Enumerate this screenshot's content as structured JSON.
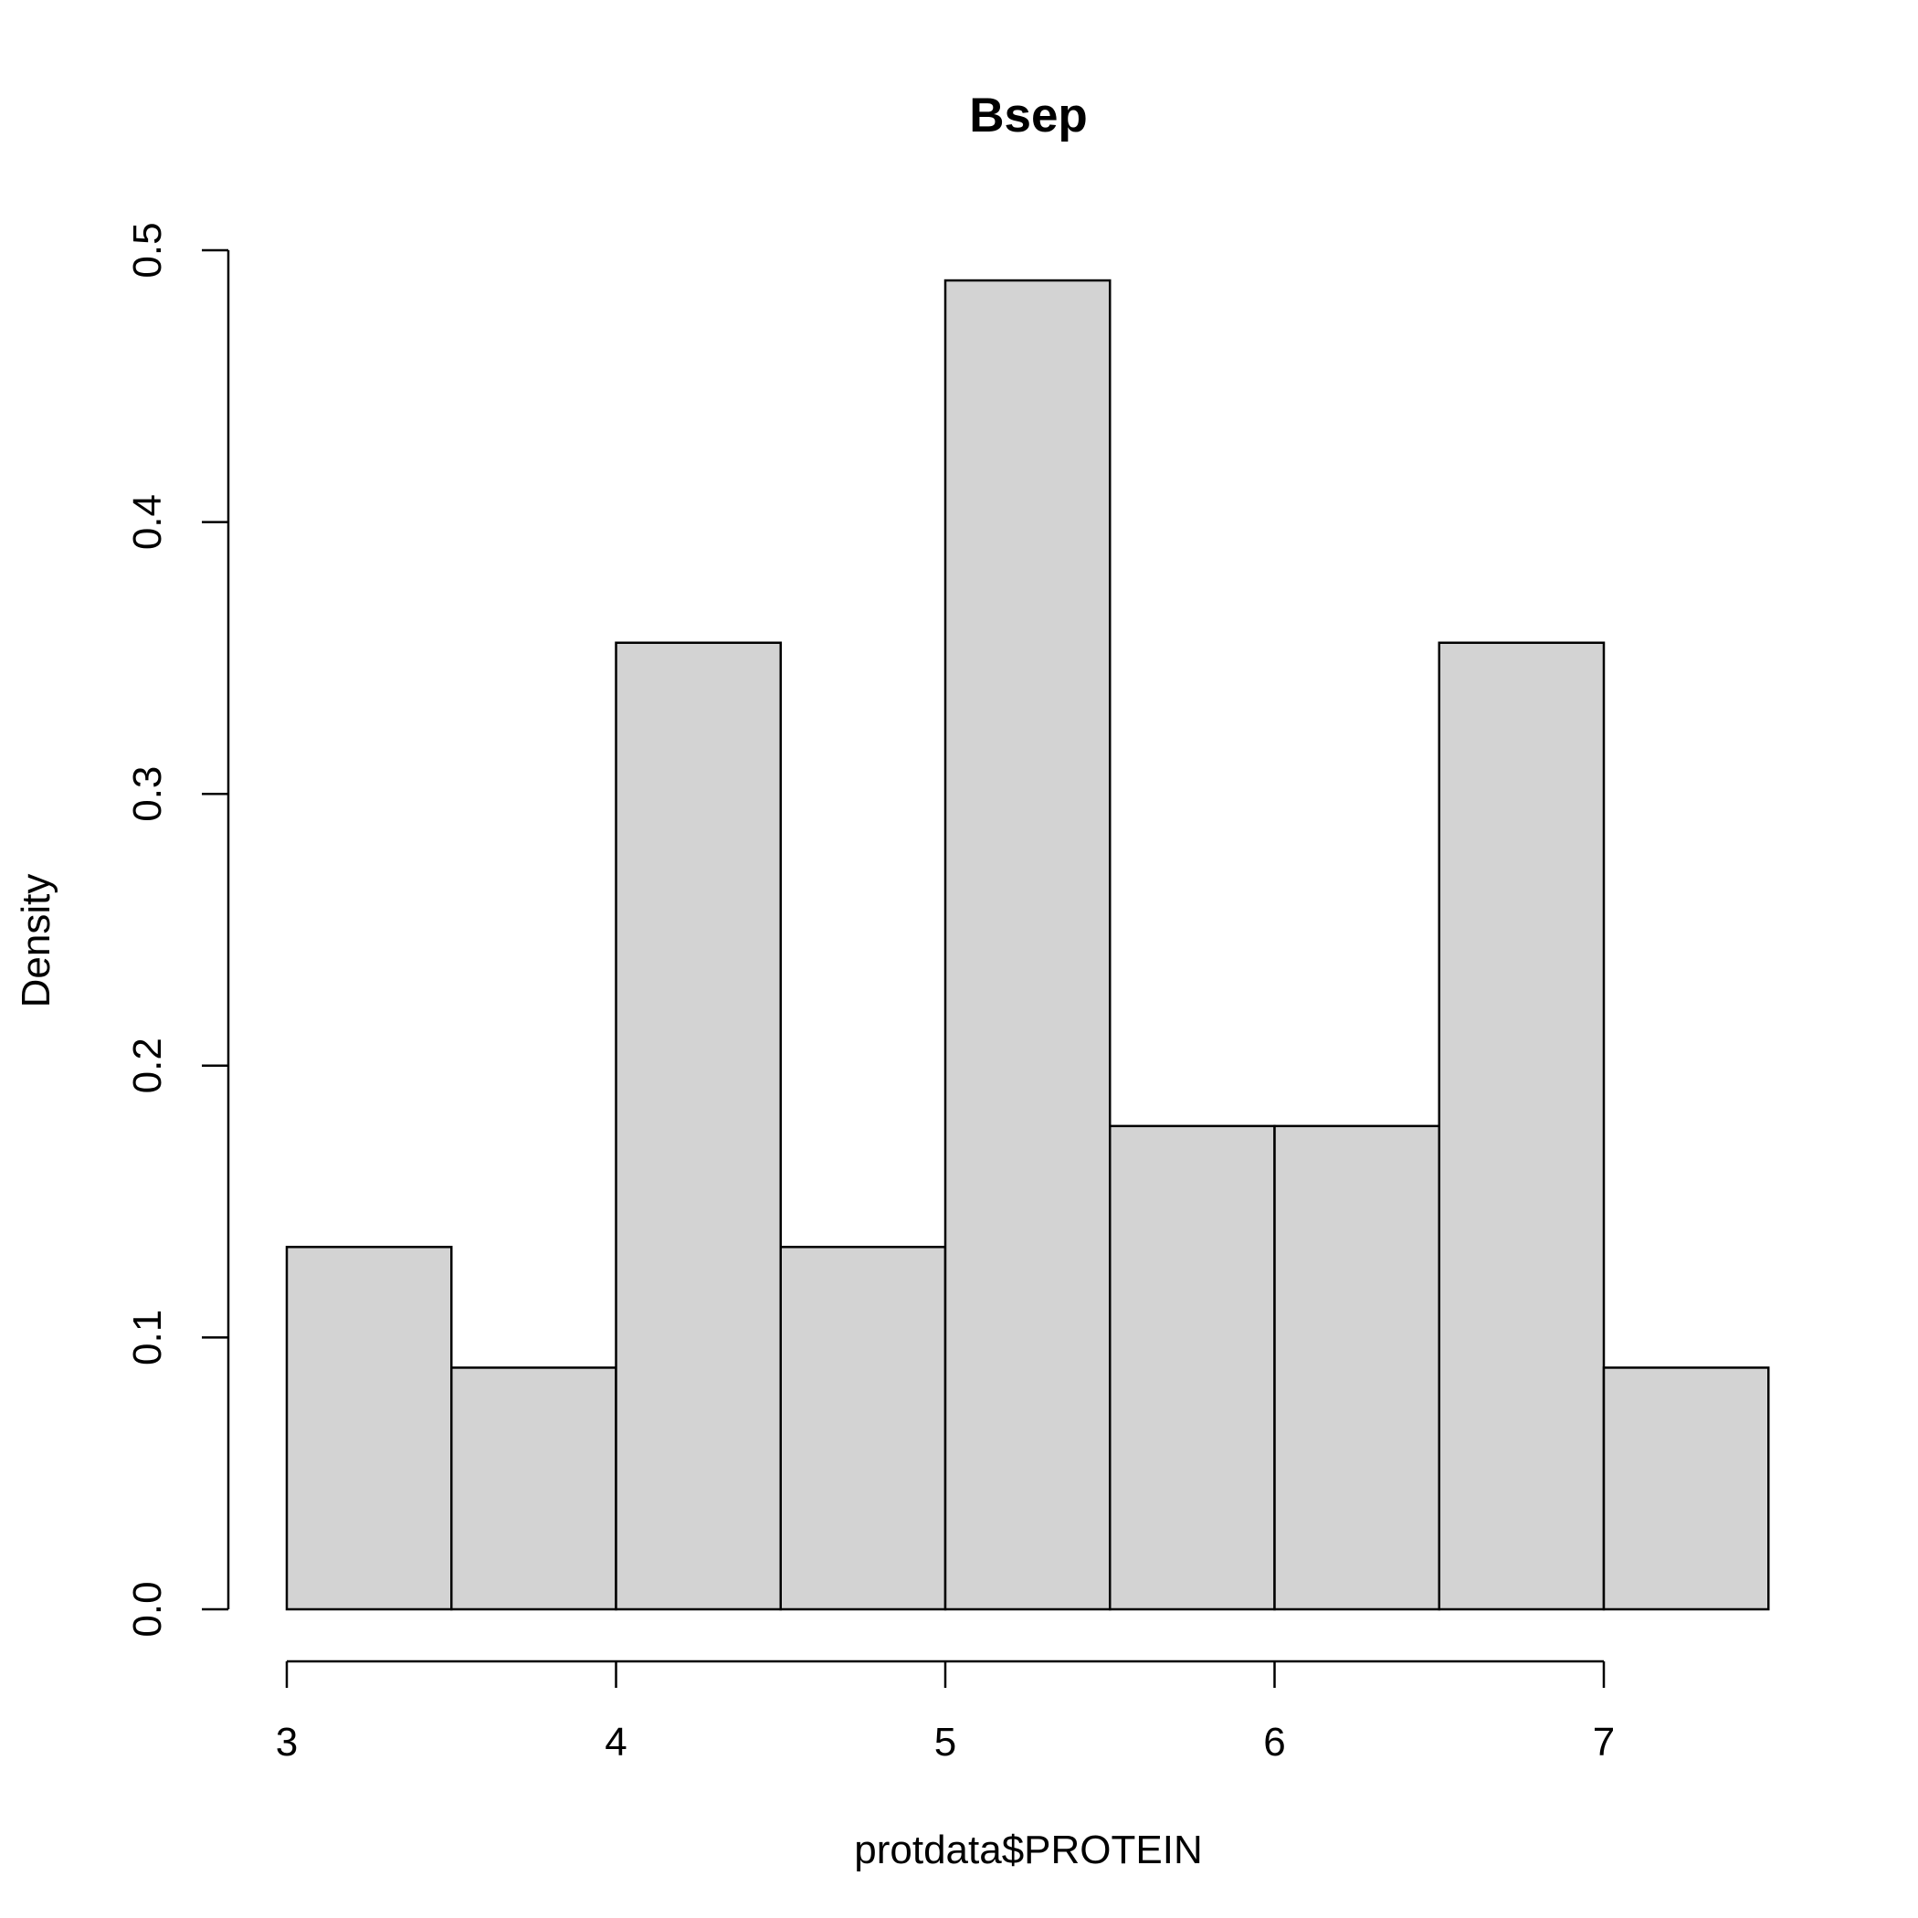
{
  "chart_data": {
    "type": "bar",
    "subtype": "histogram",
    "title": "Bsep",
    "xlabel": "protdata$PROTEIN",
    "ylabel": "Density",
    "bins": [
      {
        "x0": 3.0,
        "x1": 3.5,
        "value": 0.1333
      },
      {
        "x0": 3.5,
        "x1": 4.0,
        "value": 0.0889
      },
      {
        "x0": 4.0,
        "x1": 4.5,
        "value": 0.3556
      },
      {
        "x0": 4.5,
        "x1": 5.0,
        "value": 0.1333
      },
      {
        "x0": 5.0,
        "x1": 5.5,
        "value": 0.4889
      },
      {
        "x0": 5.5,
        "x1": 6.0,
        "value": 0.1778
      },
      {
        "x0": 6.0,
        "x1": 6.5,
        "value": 0.1778
      },
      {
        "x0": 6.5,
        "x1": 7.0,
        "value": 0.3556
      },
      {
        "x0": 7.0,
        "x1": 7.5,
        "value": 0.0889
      }
    ],
    "xticks": [
      3,
      4,
      5,
      6,
      7
    ],
    "xtick_labels": [
      "3",
      "4",
      "5",
      "6",
      "7"
    ],
    "yticks": [
      0.0,
      0.1,
      0.2,
      0.3,
      0.4,
      0.5
    ],
    "ytick_labels": [
      "0.0",
      "0.1",
      "0.2",
      "0.3",
      "0.4",
      "0.5"
    ],
    "xlim": [
      3.0,
      7.5
    ],
    "ylim": [
      0.0,
      0.5
    ],
    "grid": false,
    "legend": "none",
    "colors": {
      "bar_fill": "#d3d3d3",
      "bar_stroke": "#000000",
      "axis": "#000000",
      "background": "#ffffff"
    }
  }
}
